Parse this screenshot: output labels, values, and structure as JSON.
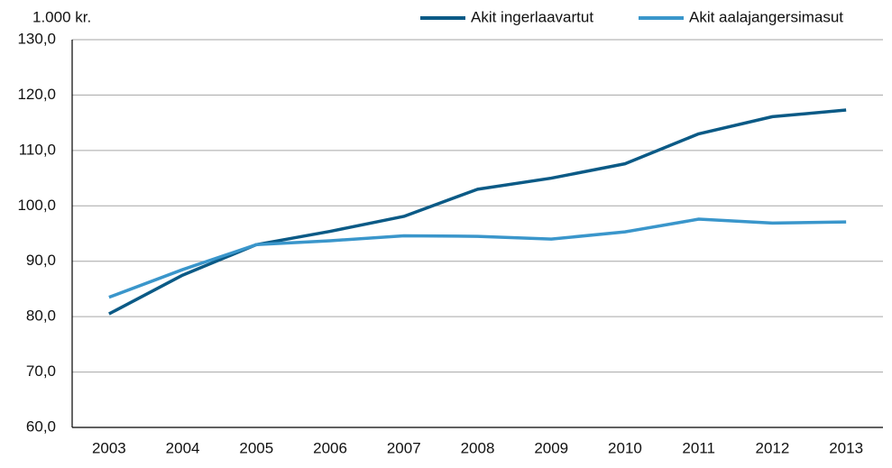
{
  "chart_data": {
    "type": "line",
    "ylabel": "1.000 kr.",
    "categories": [
      "2003",
      "2004",
      "2005",
      "2006",
      "2007",
      "2008",
      "2009",
      "2010",
      "2011",
      "2012",
      "2013"
    ],
    "series": [
      {
        "name": "Akit ingerlaavartut",
        "color": "#0b5a86",
        "values": [
          80.5,
          87.5,
          93.0,
          95.4,
          98.1,
          103.0,
          105.0,
          107.6,
          113.0,
          116.1,
          117.3
        ]
      },
      {
        "name": "Akit aalajangersimasut",
        "color": "#3a96cb",
        "values": [
          83.5,
          88.5,
          93.0,
          93.7,
          94.6,
          94.5,
          94.0,
          95.3,
          97.6,
          96.9,
          97.1
        ]
      }
    ],
    "ylim": [
      60,
      130
    ],
    "yticks": [
      {
        "value": 60,
        "label": "60,0"
      },
      {
        "value": 70,
        "label": "70,0"
      },
      {
        "value": 80,
        "label": "80,0"
      },
      {
        "value": 90,
        "label": "90,0"
      },
      {
        "value": 100,
        "label": "100,0"
      },
      {
        "value": 110,
        "label": "110,0"
      },
      {
        "value": 120,
        "label": "120,0"
      },
      {
        "value": 130,
        "label": "130,0"
      }
    ],
    "grid": true,
    "legend": "top-right"
  }
}
